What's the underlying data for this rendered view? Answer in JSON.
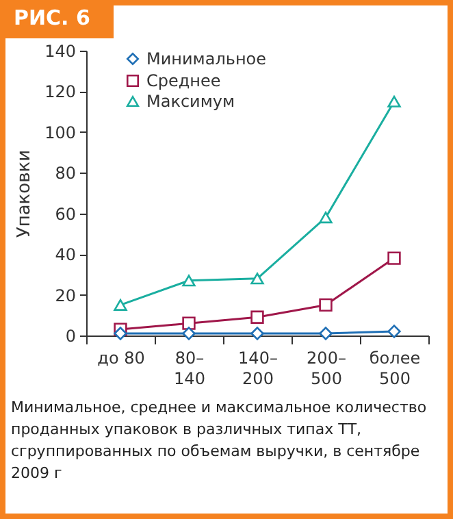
{
  "chart_data": {
    "type": "line",
    "title": "РИС. 6",
    "ylabel": "Упаковки",
    "categories": [
      "до 80",
      "80–140",
      "140–200",
      "200–500",
      "более 500"
    ],
    "series": [
      {
        "name": "Минимальное",
        "color": "#1f6fb5",
        "marker": "diamond",
        "values": [
          1,
          1,
          1,
          1,
          2
        ]
      },
      {
        "name": "Среднее",
        "color": "#a0174a",
        "marker": "square",
        "values": [
          3,
          6,
          9,
          15,
          38
        ]
      },
      {
        "name": "Максимум",
        "color": "#1aaea0",
        "marker": "triangle",
        "values": [
          15,
          27,
          28,
          58,
          115
        ]
      }
    ],
    "ylim": [
      0,
      140
    ],
    "yticks": [
      0,
      20,
      40,
      60,
      80,
      100,
      120,
      140
    ],
    "grid": false,
    "legend": "top left",
    "annotations": [
      "Минимальное, среднее и максимальное количество проданных упаковок в различных типах ТТ, сгруппированных по объемам выручки, в сентябре 2009 г"
    ]
  }
}
